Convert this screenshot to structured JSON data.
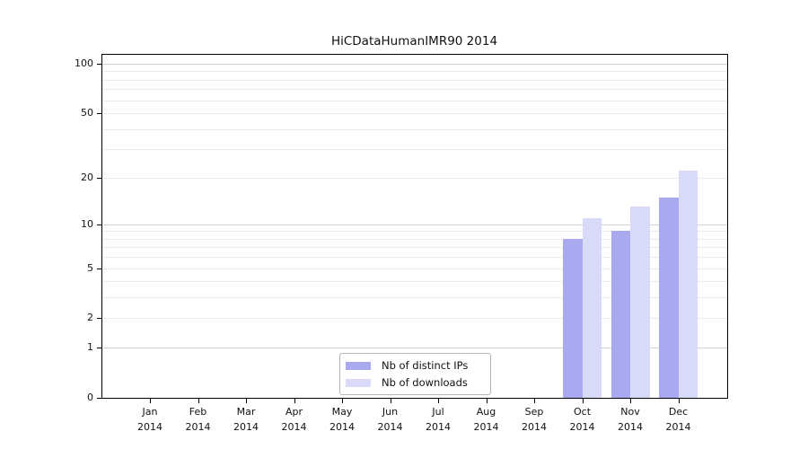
{
  "chart_data": {
    "type": "bar",
    "title": "HiCDataHumanIMR90 2014",
    "categories": [
      "Jan",
      "Feb",
      "Mar",
      "Apr",
      "May",
      "Jun",
      "Jul",
      "Aug",
      "Sep",
      "Oct",
      "Nov",
      "Dec"
    ],
    "category_year": "2014",
    "series": [
      {
        "name": "Nb of distinct IPs",
        "color": "#a9a9f0",
        "values": [
          0,
          0,
          0,
          0,
          0,
          0,
          0,
          0,
          0,
          8,
          9,
          15
        ]
      },
      {
        "name": "Nb of downloads",
        "color": "#d9d9f8",
        "values": [
          0,
          0,
          0,
          0,
          0,
          0,
          0,
          0,
          0,
          11,
          13,
          22
        ]
      }
    ],
    "yscale": "log1p",
    "ylim": [
      0,
      115
    ],
    "yticks": [
      0,
      1,
      2,
      5,
      10,
      20,
      50,
      100
    ],
    "grid_major": [
      1,
      10,
      100
    ],
    "grid_minor": [
      2,
      3,
      4,
      5,
      6,
      7,
      8,
      9,
      20,
      30,
      40,
      50,
      60,
      70,
      80,
      90
    ],
    "grid_on": true,
    "legend_position": "bottom-center",
    "colors": {
      "grid_major": "#d2d2d2",
      "grid_minor": "#ebebeb",
      "spine": "#000000",
      "background": "#ffffff",
      "text": "#111111"
    }
  }
}
